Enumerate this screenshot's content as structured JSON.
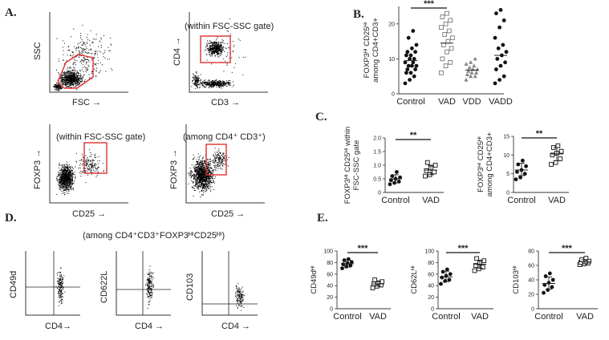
{
  "figure": {
    "panels": {
      "A": {
        "letter": "A.",
        "plots": [
          {
            "xlabel": "FSC →",
            "ylabel": "SSC",
            "note": ""
          },
          {
            "xlabel": "CD3 →",
            "ylabel": "CD4 →",
            "note": "(within FSC-SSC gate)"
          },
          {
            "xlabel": "CD25 →",
            "ylabel": "FOXP3 →",
            "note": "(within FSC-SSC gate)"
          },
          {
            "xlabel": "CD25 →",
            "ylabel": "FOXP3 →",
            "note": "(among CD4⁺ CD3⁺)"
          }
        ]
      },
      "B": {
        "letter": "B."
      },
      "C": {
        "letter": "C."
      },
      "D": {
        "letter": "D.",
        "title": "(among CD4⁺CD3⁺FOXP3ᴴⁱCD25ᴴⁱ)",
        "plots": [
          {
            "xlabel": "CD4→",
            "ylabel": "CD49d"
          },
          {
            "xlabel": "CD4 →",
            "ylabel": "CD622L"
          },
          {
            "xlabel": "CD4 →",
            "ylabel": "CD103"
          }
        ]
      },
      "E": {
        "letter": "E."
      }
    }
  },
  "chart_data": [
    {
      "id": "B",
      "type": "scatter",
      "ylabel": "FOXP3ᴴⁱ CD25ᴴⁱ among CD4+CD3+",
      "categories": [
        "Control",
        "VAD",
        "VDD",
        "VADD"
      ],
      "ylim": [
        0,
        25
      ],
      "yticks": [
        "0",
        "10",
        "20"
      ],
      "ytick_values": [
        0,
        10,
        20
      ],
      "markers": [
        "circle-filled",
        "square-open",
        "triangle-filled",
        "circle-filled"
      ],
      "colors": [
        "#111111",
        "#777777",
        "#888888",
        "#111111"
      ],
      "series": [
        {
          "name": "Control",
          "values": [
            3,
            4,
            5,
            6,
            6,
            7,
            7,
            8,
            8,
            8,
            9,
            9,
            10,
            10,
            11,
            11,
            12,
            12,
            13,
            14,
            16,
            18
          ],
          "median": 9.5
        },
        {
          "name": "VAD",
          "values": [
            6,
            8,
            9,
            10,
            12,
            13,
            14,
            15,
            16,
            17,
            18,
            19,
            20,
            21,
            22,
            23
          ],
          "median": 14.5
        },
        {
          "name": "VDD",
          "values": [
            4,
            5,
            5,
            5.5,
            6,
            6,
            6.5,
            7,
            7,
            7.5,
            8,
            8.5,
            9,
            10
          ],
          "median": 6.8
        },
        {
          "name": "VADD",
          "values": [
            3,
            4,
            5,
            7,
            8,
            9,
            10,
            11,
            12,
            13,
            14,
            16,
            19,
            21,
            23,
            24
          ],
          "median": 11
        }
      ],
      "significance": [
        {
          "from": "Control",
          "to": "VAD",
          "label": "***"
        }
      ]
    },
    {
      "id": "C1",
      "type": "scatter",
      "ylabel": "FOXP3ᴴⁱ CD25ᴴⁱ within FSC-SSC gate",
      "categories": [
        "Control",
        "VAD"
      ],
      "ylim": [
        0,
        2.0
      ],
      "yticks": [
        "0",
        "0.5",
        "1.0",
        "1.5",
        "2.0"
      ],
      "ytick_values": [
        0,
        0.5,
        1.0,
        1.5,
        2.0
      ],
      "markers": [
        "circle-filled",
        "square-open"
      ],
      "series": [
        {
          "name": "Control",
          "values": [
            0.3,
            0.35,
            0.4,
            0.45,
            0.5,
            0.55,
            0.6,
            0.75
          ],
          "median": 0.5,
          "err": [
            0.35,
            0.65
          ]
        },
        {
          "name": "VAD",
          "values": [
            0.6,
            0.65,
            0.75,
            0.8,
            0.9,
            1.0,
            1.1
          ],
          "median": 0.82,
          "err": [
            0.65,
            1.0
          ]
        }
      ],
      "significance": [
        {
          "from": "Control",
          "to": "VAD",
          "label": "**"
        }
      ]
    },
    {
      "id": "C2",
      "type": "scatter",
      "ylabel": "FOXP3ᴴⁱ CD25ᴴⁱ among CD4+CD3+",
      "categories": [
        "Control",
        "VAD"
      ],
      "ylim": [
        0,
        15
      ],
      "yticks": [
        "0",
        "5",
        "10",
        "15"
      ],
      "ytick_values": [
        0,
        5,
        10,
        15
      ],
      "markers": [
        "circle-filled",
        "square-open"
      ],
      "series": [
        {
          "name": "Control",
          "values": [
            3.5,
            4,
            5,
            5.5,
            6,
            7,
            7.5,
            8.5
          ],
          "median": 6,
          "err": [
            4.5,
            7.8
          ]
        },
        {
          "name": "VAD",
          "values": [
            7.5,
            8,
            9,
            10,
            10.5,
            11,
            12,
            12.5
          ],
          "median": 10.3,
          "err": [
            8.5,
            12
          ]
        }
      ],
      "significance": [
        {
          "from": "Control",
          "to": "VAD",
          "label": "**"
        }
      ]
    },
    {
      "id": "E1",
      "type": "scatter",
      "ylabel": "CD49dᴴⁱ",
      "categories": [
        "Control",
        "VAD"
      ],
      "ylim": [
        0,
        100
      ],
      "yticks": [
        "0",
        "20",
        "40",
        "60",
        "80",
        "100"
      ],
      "ytick_values": [
        0,
        20,
        40,
        60,
        80,
        100
      ],
      "markers": [
        "circle-filled",
        "square-open"
      ],
      "series": [
        {
          "name": "Control",
          "values": [
            70,
            73,
            75,
            77,
            79,
            81,
            84,
            86
          ],
          "median": 78,
          "err": [
            72,
            84
          ]
        },
        {
          "name": "VAD",
          "values": [
            36,
            39,
            41,
            43,
            45,
            47,
            50
          ],
          "median": 43,
          "err": [
            39,
            47
          ]
        }
      ],
      "significance": [
        {
          "from": "Control",
          "to": "VAD",
          "label": "***"
        }
      ]
    },
    {
      "id": "E2",
      "type": "scatter",
      "ylabel": "CD62Lᴴⁱ",
      "categories": [
        "Control",
        "VAD"
      ],
      "ylim": [
        0,
        100
      ],
      "yticks": [
        "0",
        "20",
        "40",
        "60",
        "80",
        "100"
      ],
      "ytick_values": [
        0,
        20,
        40,
        60,
        80,
        100
      ],
      "markers": [
        "circle-filled",
        "square-open"
      ],
      "series": [
        {
          "name": "Control",
          "values": [
            43,
            48,
            50,
            54,
            57,
            60,
            64,
            68
          ],
          "median": 55,
          "err": [
            47,
            65
          ]
        },
        {
          "name": "VAD",
          "values": [
            66,
            69,
            72,
            75,
            79,
            83,
            87
          ],
          "median": 77,
          "err": [
            70,
            84
          ]
        }
      ],
      "significance": [
        {
          "from": "Control",
          "to": "VAD",
          "label": "***"
        }
      ]
    },
    {
      "id": "E3",
      "type": "scatter",
      "ylabel": "CD103ᴴⁱ",
      "categories": [
        "Control",
        "VAD"
      ],
      "ylim": [
        0,
        80
      ],
      "yticks": [
        "0",
        "20",
        "40",
        "60",
        "80"
      ],
      "ytick_values": [
        0,
        20,
        40,
        60,
        80
      ],
      "markers": [
        "circle-filled",
        "square-open"
      ],
      "series": [
        {
          "name": "Control",
          "values": [
            22,
            26,
            30,
            33,
            36,
            40,
            45,
            49
          ],
          "median": 35,
          "err": [
            27,
            44
          ]
        },
        {
          "name": "VAD",
          "values": [
            61,
            62,
            63,
            64,
            65,
            66,
            68,
            70
          ],
          "median": 65,
          "err": [
            62,
            68
          ]
        }
      ],
      "significance": [
        {
          "from": "Control",
          "to": "VAD",
          "label": "***"
        }
      ]
    }
  ]
}
